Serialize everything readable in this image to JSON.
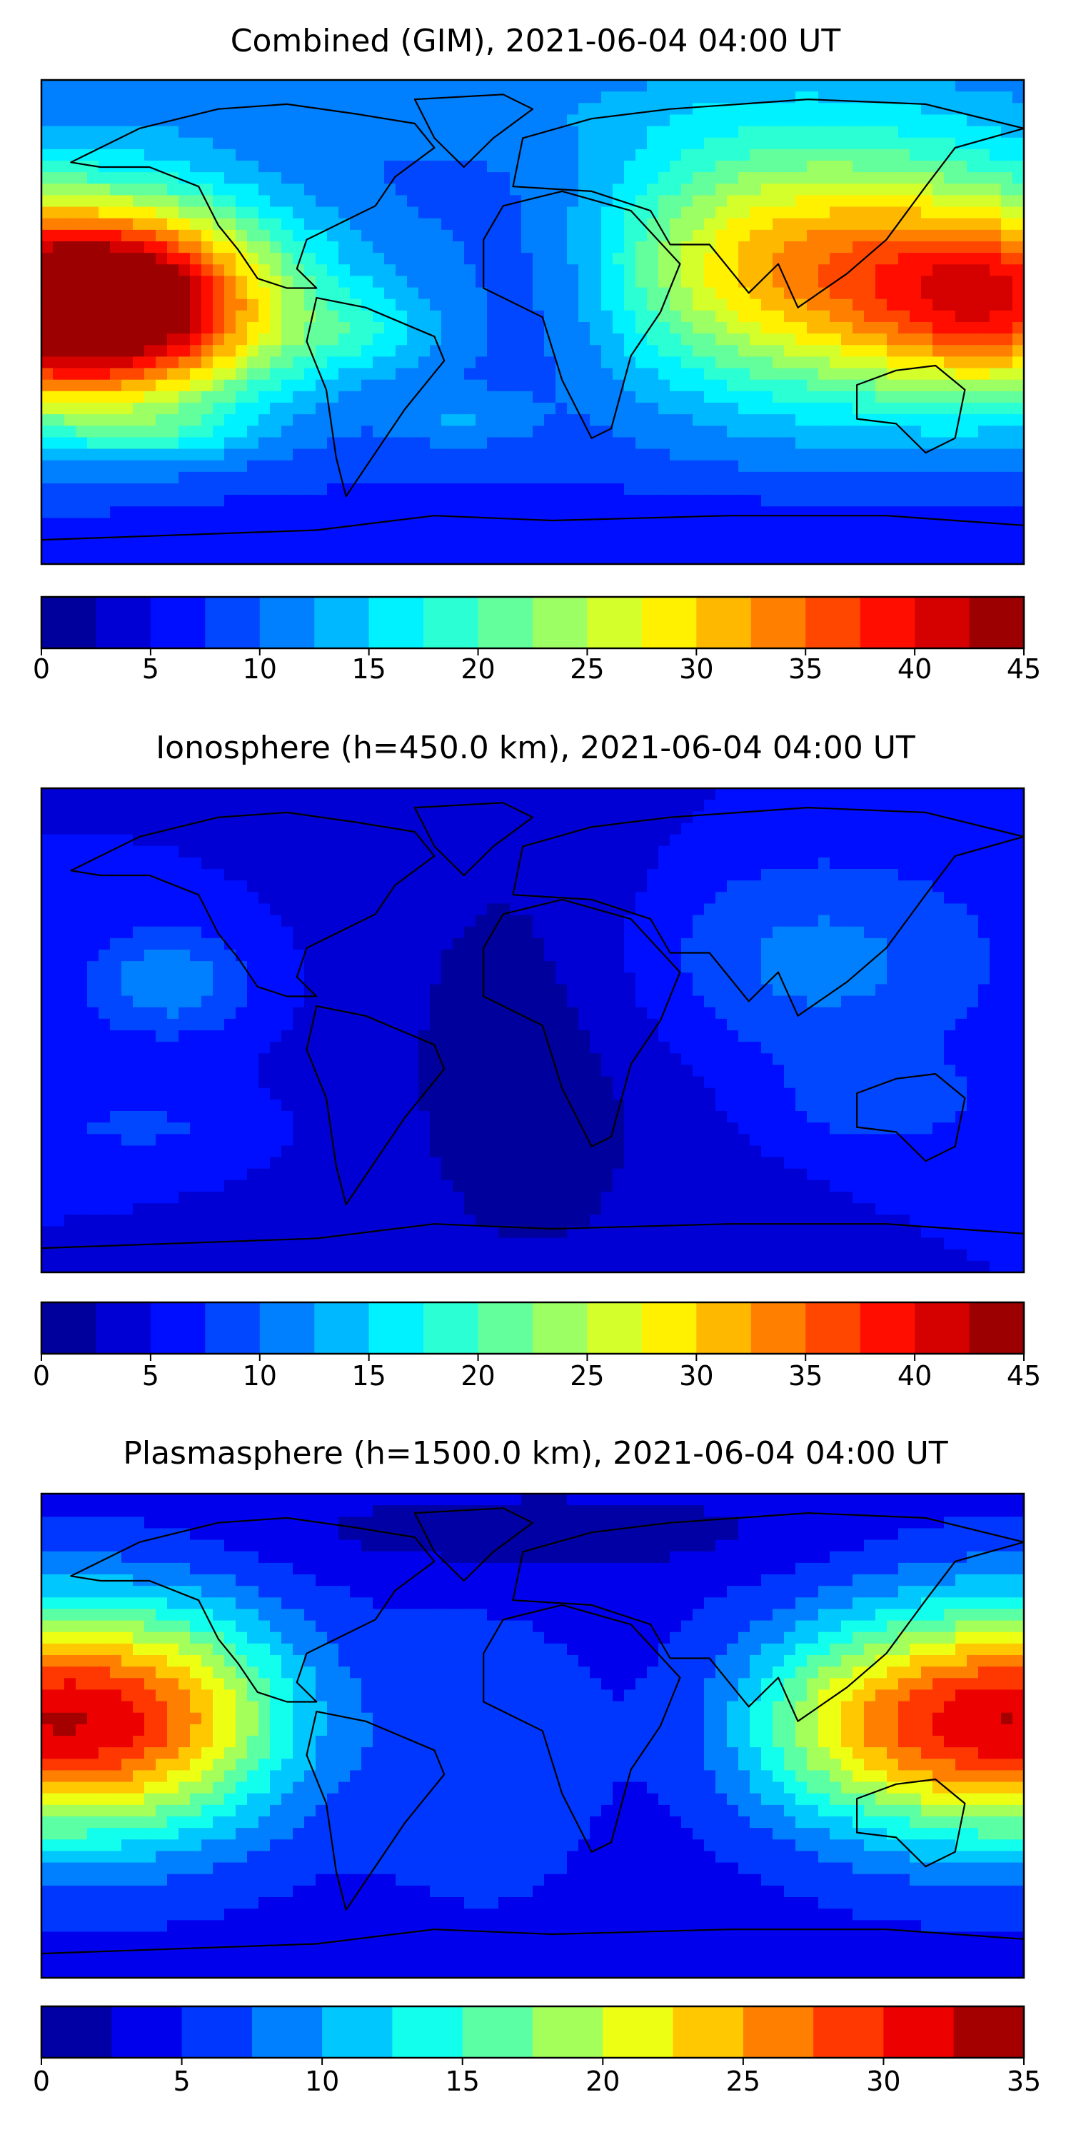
{
  "chart_data": [
    {
      "type": "heatmap",
      "title": "Combined (GIM), 2021-06-04 04:00 UT",
      "colorbar": {
        "ticks": [
          0,
          5,
          10,
          15,
          20,
          25,
          30,
          35,
          40,
          45
        ],
        "levels": [
          0,
          2.5,
          5,
          7.5,
          10,
          12.5,
          15,
          17.5,
          20,
          22.5,
          25,
          27.5,
          30,
          32.5,
          35,
          37.5,
          40,
          42.5,
          45
        ]
      },
      "grid": false,
      "blobs": [
        {
          "x": 0.01,
          "y": 0.46,
          "sx": 0.16,
          "sy": 0.16,
          "v": 42
        },
        {
          "x": 0.11,
          "y": 0.47,
          "sx": 0.08,
          "sy": 0.12,
          "v": 8
        },
        {
          "x": 0.99,
          "y": 0.46,
          "sx": 0.1,
          "sy": 0.14,
          "v": 20
        },
        {
          "x": 0.82,
          "y": 0.4,
          "sx": 0.17,
          "sy": 0.2,
          "v": 20
        },
        {
          "x": 0.72,
          "y": 0.35,
          "sx": 0.12,
          "sy": 0.16,
          "v": 6
        },
        {
          "x": 0.33,
          "y": 0.52,
          "sx": 0.06,
          "sy": 0.06,
          "v": 5
        },
        {
          "x": 0.43,
          "y": 0.7,
          "sx": 0.05,
          "sy": 0.04,
          "v": 4
        },
        {
          "x": 0.13,
          "y": 0.73,
          "sx": 0.06,
          "sy": 0.03,
          "v": 4
        },
        {
          "x": 0.52,
          "y": 0.42,
          "sx": 0.06,
          "sy": 0.14,
          "v": -3
        },
        {
          "x": 0.5,
          "y": 0.05,
          "sx": 0.5,
          "sy": 0.08,
          "v": 3
        },
        {
          "x": 0.55,
          "y": 0.94,
          "sx": 0.5,
          "sy": 0.07,
          "v": -3
        }
      ],
      "base": 8
    },
    {
      "type": "heatmap",
      "title": "Ionosphere  (h=450.0 km), 2021-06-04 04:00 UT",
      "colorbar": {
        "ticks": [
          0,
          5,
          10,
          15,
          20,
          25,
          30,
          35,
          40,
          45
        ],
        "levels": [
          0,
          2.5,
          5,
          7.5,
          10,
          12.5,
          15,
          17.5,
          20,
          22.5,
          25,
          27.5,
          30,
          32.5,
          35,
          37.5,
          40,
          42.5,
          45
        ]
      },
      "grid": false,
      "blobs": [
        {
          "x": 0.13,
          "y": 0.4,
          "sx": 0.06,
          "sy": 0.08,
          "v": 7
        },
        {
          "x": 0.78,
          "y": 0.36,
          "sx": 0.14,
          "sy": 0.16,
          "v": 6
        },
        {
          "x": 0.86,
          "y": 0.65,
          "sx": 0.07,
          "sy": 0.06,
          "v": 4
        },
        {
          "x": 0.5,
          "y": 0.55,
          "sx": 0.12,
          "sy": 0.4,
          "v": -4
        },
        {
          "x": 0.1,
          "y": 0.7,
          "sx": 0.08,
          "sy": 0.05,
          "v": 3
        }
      ],
      "base": 5
    },
    {
      "type": "heatmap",
      "title": "Plasmasphere (h=1500.0 km), 2021-06-04 04:00 UT",
      "colorbar": {
        "ticks": [
          0,
          5,
          10,
          15,
          20,
          25,
          30,
          35
        ],
        "levels": [
          0,
          2.5,
          5,
          7.5,
          10,
          12.5,
          15,
          17.5,
          20,
          22.5,
          25,
          27.5,
          30,
          32.5,
          35
        ]
      },
      "grid": false,
      "blobs": [
        {
          "x": 0.01,
          "y": 0.47,
          "sx": 0.14,
          "sy": 0.17,
          "v": 28
        },
        {
          "x": 0.99,
          "y": 0.47,
          "sx": 0.13,
          "sy": 0.17,
          "v": 28
        },
        {
          "x": 0.8,
          "y": 0.48,
          "sx": 0.08,
          "sy": 0.14,
          "v": 8
        },
        {
          "x": 0.17,
          "y": 0.45,
          "sx": 0.08,
          "sy": 0.16,
          "v": 5
        },
        {
          "x": 0.5,
          "y": 0.08,
          "sx": 0.2,
          "sy": 0.06,
          "v": -3
        },
        {
          "x": 0.45,
          "y": 0.55,
          "sx": 0.08,
          "sy": 0.2,
          "v": 3
        }
      ],
      "base": 4
    }
  ]
}
